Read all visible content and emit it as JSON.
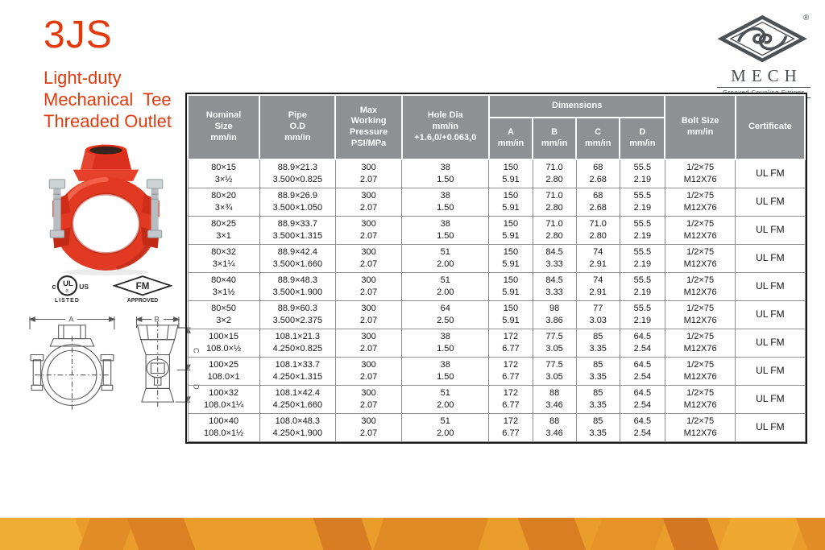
{
  "header": {
    "product_code": "3JS",
    "subtitle_lines": [
      "Light-duty",
      "Mechanical  Tee",
      "Threaded Outlet"
    ],
    "accent_color": "#e23a0c"
  },
  "brand": {
    "name": "MECH",
    "tagline": "Grooved Coupling Fittings",
    "registered_mark": "®",
    "logo_color": "#4c5156"
  },
  "certifications": {
    "ul": {
      "prefix": "c",
      "mark": "UL",
      "suffix": "US",
      "caption": "LISTED"
    },
    "fm": {
      "mark": "FM",
      "caption": "APPROVED"
    }
  },
  "drawings": {
    "front_dim_label": "A",
    "side_dim_label": "B",
    "side_dim_c_label": "C",
    "side_dim_d_label": "D"
  },
  "table": {
    "header_bg": "#8e9093",
    "headers": {
      "nominal": "Nominal\nSize\nmm/in",
      "pipe_od": "Pipe\nO.D\nmm/in",
      "pressure": "Max\nWorking\nPressure\nPSI/MPa",
      "hole_dia": "Hole Dia\nmm/in\n+1.6,0/+0.063,0",
      "dimensions": "Dimensions",
      "dim_a": "A\nmm/in",
      "dim_b": "B\nmm/in",
      "dim_c": "C\nmm/in",
      "dim_d": "D\nmm/in",
      "bolt": "Bolt Size\nmm/in",
      "certificate": "Certificate"
    },
    "rows": [
      {
        "nominal": [
          "80×15",
          "3×½"
        ],
        "pipe_od": [
          "88.9×21.3",
          "3.500×0.825"
        ],
        "pressure": [
          "300",
          "2.07"
        ],
        "hole_dia": [
          "38",
          "1.50"
        ],
        "dim_a": [
          "150",
          "5.91"
        ],
        "dim_b": [
          "71.0",
          "2.80"
        ],
        "dim_c": [
          "68",
          "2.68"
        ],
        "dim_d": [
          "55.5",
          "2.19"
        ],
        "bolt": [
          "1/2×75",
          "M12X76"
        ],
        "certificate": "UL FM"
      },
      {
        "nominal": [
          "80×20",
          "3×¾"
        ],
        "pipe_od": [
          "88.9×26.9",
          "3.500×1.050"
        ],
        "pressure": [
          "300",
          "2.07"
        ],
        "hole_dia": [
          "38",
          "1.50"
        ],
        "dim_a": [
          "150",
          "5.91"
        ],
        "dim_b": [
          "71.0",
          "2.80"
        ],
        "dim_c": [
          "68",
          "2.68"
        ],
        "dim_d": [
          "55.5",
          "2.19"
        ],
        "bolt": [
          "1/2×75",
          "M12X76"
        ],
        "certificate": "UL FM"
      },
      {
        "nominal": [
          "80×25",
          "3×1"
        ],
        "pipe_od": [
          "88.9×33.7",
          "3.500×1.315"
        ],
        "pressure": [
          "300",
          "2.07"
        ],
        "hole_dia": [
          "38",
          "1.50"
        ],
        "dim_a": [
          "150",
          "5.91"
        ],
        "dim_b": [
          "71.0",
          "2.80"
        ],
        "dim_c": [
          "71.0",
          "2.80"
        ],
        "dim_d": [
          "55.5",
          "2.19"
        ],
        "bolt": [
          "1/2×75",
          "M12X76"
        ],
        "certificate": "UL FM"
      },
      {
        "nominal": [
          "80×32",
          "3×1¼"
        ],
        "pipe_od": [
          "88.9×42.4",
          "3.500×1.660"
        ],
        "pressure": [
          "300",
          "2.07"
        ],
        "hole_dia": [
          "51",
          "2.00"
        ],
        "dim_a": [
          "150",
          "5.91"
        ],
        "dim_b": [
          "84.5",
          "3.33"
        ],
        "dim_c": [
          "74",
          "2.91"
        ],
        "dim_d": [
          "55.5",
          "2.19"
        ],
        "bolt": [
          "1/2×75",
          "M12X76"
        ],
        "certificate": "UL FM"
      },
      {
        "nominal": [
          "80×40",
          "3×1½"
        ],
        "pipe_od": [
          "88.9×48.3",
          "3.500×1.900"
        ],
        "pressure": [
          "300",
          "2.07"
        ],
        "hole_dia": [
          "51",
          "2.00"
        ],
        "dim_a": [
          "150",
          "5.91"
        ],
        "dim_b": [
          "84.5",
          "3.33"
        ],
        "dim_c": [
          "74",
          "2.91"
        ],
        "dim_d": [
          "55.5",
          "2.19"
        ],
        "bolt": [
          "1/2×75",
          "M12X76"
        ],
        "certificate": "UL FM"
      },
      {
        "nominal": [
          "80×50",
          "3×2"
        ],
        "pipe_od": [
          "88.9×60.3",
          "3.500×2.375"
        ],
        "pressure": [
          "300",
          "2.07"
        ],
        "hole_dia": [
          "64",
          "2.50"
        ],
        "dim_a": [
          "150",
          "5.91"
        ],
        "dim_b": [
          "98",
          "3.86"
        ],
        "dim_c": [
          "77",
          "3.03"
        ],
        "dim_d": [
          "55.5",
          "2.19"
        ],
        "bolt": [
          "1/2×75",
          "M12X76"
        ],
        "certificate": "UL FM"
      },
      {
        "nominal": [
          "100×15",
          "108.0×½"
        ],
        "pipe_od": [
          "108.1×21.3",
          "4.250×0.825"
        ],
        "pressure": [
          "300",
          "2.07"
        ],
        "hole_dia": [
          "38",
          "1.50"
        ],
        "dim_a": [
          "172",
          "6.77"
        ],
        "dim_b": [
          "77.5",
          "3.05"
        ],
        "dim_c": [
          "85",
          "3.35"
        ],
        "dim_d": [
          "64.5",
          "2.54"
        ],
        "bolt": [
          "1/2×75",
          "M12X76"
        ],
        "certificate": "UL FM"
      },
      {
        "nominal": [
          "100×25",
          "108.0×1"
        ],
        "pipe_od": [
          "108.1×33.7",
          "4.250×1.315"
        ],
        "pressure": [
          "300",
          "2.07"
        ],
        "hole_dia": [
          "38",
          "1.50"
        ],
        "dim_a": [
          "172",
          "6.77"
        ],
        "dim_b": [
          "77.5",
          "3.05"
        ],
        "dim_c": [
          "85",
          "3.35"
        ],
        "dim_d": [
          "64.5",
          "2.54"
        ],
        "bolt": [
          "1/2×75",
          "M12X76"
        ],
        "certificate": "UL FM"
      },
      {
        "nominal": [
          "100×32",
          "108.0×1¼"
        ],
        "pipe_od": [
          "108.1×42.4",
          "4.250×1.660"
        ],
        "pressure": [
          "300",
          "2.07"
        ],
        "hole_dia": [
          "51",
          "2.00"
        ],
        "dim_a": [
          "172",
          "6.77"
        ],
        "dim_b": [
          "88",
          "3.46"
        ],
        "dim_c": [
          "85",
          "3.35"
        ],
        "dim_d": [
          "64.5",
          "2.54"
        ],
        "bolt": [
          "1/2×75",
          "M12X76"
        ],
        "certificate": "UL FM"
      },
      {
        "nominal": [
          "100×40",
          "108.0×1½"
        ],
        "pipe_od": [
          "108.0×48.3",
          "4.250×1.900"
        ],
        "pressure": [
          "300",
          "2.07"
        ],
        "hole_dia": [
          "51",
          "2.00"
        ],
        "dim_a": [
          "172",
          "6.77"
        ],
        "dim_b": [
          "88",
          "3.46"
        ],
        "dim_c": [
          "85",
          "3.35"
        ],
        "dim_d": [
          "64.5",
          "2.54"
        ],
        "bolt": [
          "1/2×75",
          "M12X76"
        ],
        "certificate": "UL FM"
      }
    ]
  },
  "footer": {
    "band_color": "#eb9d2c"
  }
}
